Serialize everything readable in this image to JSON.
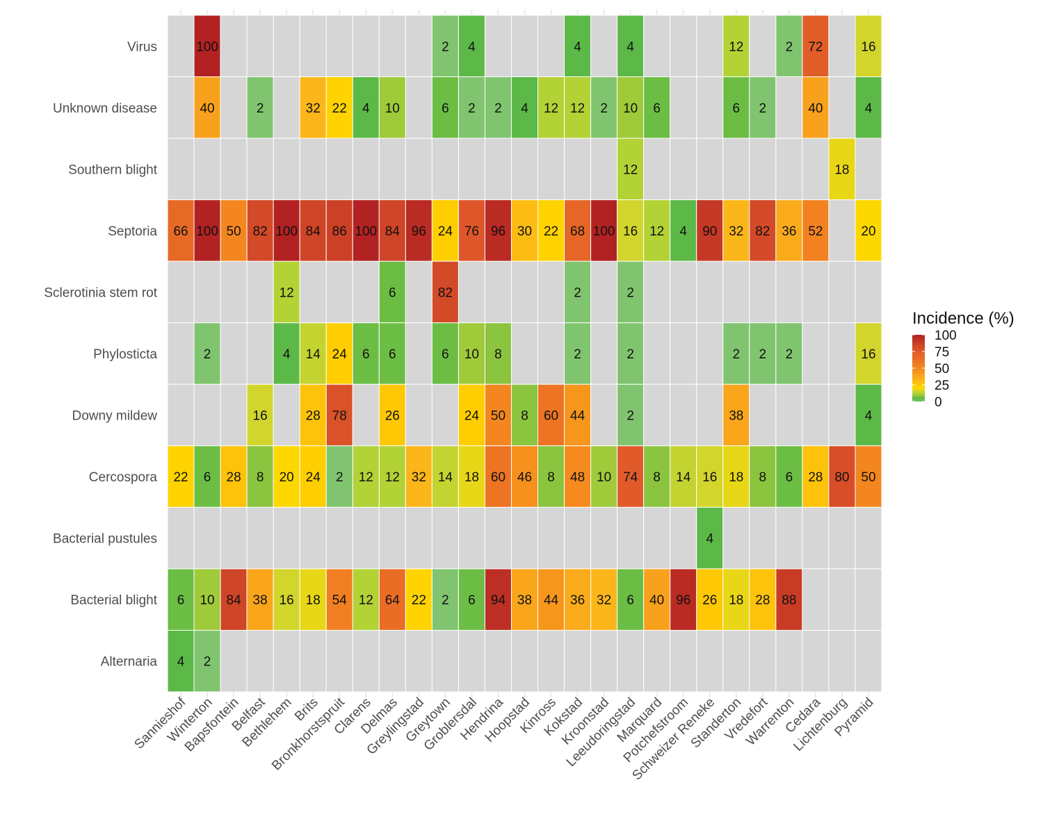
{
  "chart_data": {
    "type": "heatmap",
    "title": "",
    "xlabel": "",
    "ylabel": "",
    "legend": {
      "title": "Incidence (%)",
      "ticks": [
        0,
        25,
        50,
        75,
        100
      ],
      "range": [
        0,
        100
      ],
      "placement": "right"
    },
    "colors": {
      "na": "#d6d6d6",
      "low": "#4daf4a",
      "mid": "#ffd700",
      "high": "#b22222"
    },
    "x": [
      "Sannieshof",
      "Winterton",
      "Bapsfontein",
      "Belfast",
      "Bethlehem",
      "Brits",
      "Bronkhorstspruit",
      "Clarens",
      "Delmas",
      "Greylingstad",
      "Greytown",
      "Groblersdal",
      "Hendrina",
      "Hoopstad",
      "Kinross",
      "Kokstad",
      "Kroonstad",
      "Leeudoringstad",
      "Marquard",
      "Potchefstroom",
      "Schweizer Reneke",
      "Standerton",
      "Vredefort",
      "Warrenton",
      "Cedara",
      "Lichtenburg",
      "Pyramid"
    ],
    "y": [
      "Virus",
      "Unknown disease",
      "Southern blight",
      "Septoria",
      "Sclerotinia stem rot",
      "Phylosticta",
      "Downy mildew",
      "Cercospora",
      "Bacterial pustules",
      "Bacterial blight",
      "Alternaria"
    ],
    "values": [
      [
        null,
        100,
        null,
        null,
        null,
        null,
        null,
        null,
        null,
        null,
        2,
        4,
        null,
        null,
        null,
        4,
        null,
        4,
        null,
        null,
        null,
        12,
        null,
        2,
        72,
        null,
        16
      ],
      [
        null,
        40,
        null,
        2,
        null,
        32,
        22,
        4,
        10,
        null,
        6,
        2,
        2,
        4,
        12,
        12,
        2,
        10,
        6,
        null,
        null,
        6,
        2,
        null,
        40,
        null,
        4
      ],
      [
        null,
        null,
        null,
        null,
        null,
        null,
        null,
        null,
        null,
        null,
        null,
        null,
        null,
        null,
        null,
        null,
        null,
        12,
        null,
        null,
        null,
        null,
        null,
        null,
        null,
        18,
        null
      ],
      [
        66,
        100,
        50,
        82,
        100,
        84,
        86,
        100,
        84,
        96,
        24,
        76,
        96,
        30,
        22,
        68,
        100,
        16,
        12,
        4,
        90,
        32,
        82,
        36,
        52,
        null,
        20
      ],
      [
        null,
        null,
        null,
        null,
        12,
        null,
        null,
        null,
        6,
        null,
        82,
        null,
        null,
        null,
        null,
        2,
        null,
        2,
        null,
        null,
        null,
        null,
        null,
        null,
        null,
        null,
        null
      ],
      [
        null,
        2,
        null,
        null,
        4,
        14,
        24,
        6,
        6,
        null,
        6,
        10,
        8,
        null,
        null,
        2,
        null,
        2,
        null,
        null,
        null,
        2,
        2,
        2,
        null,
        null,
        16
      ],
      [
        null,
        null,
        null,
        16,
        null,
        28,
        78,
        null,
        26,
        null,
        null,
        24,
        50,
        8,
        60,
        44,
        null,
        2,
        null,
        null,
        null,
        38,
        null,
        null,
        null,
        null,
        4
      ],
      [
        22,
        6,
        28,
        8,
        20,
        24,
        2,
        12,
        12,
        32,
        14,
        18,
        60,
        46,
        8,
        48,
        10,
        74,
        8,
        14,
        16,
        18,
        8,
        6,
        28,
        80,
        50
      ],
      [
        null,
        null,
        null,
        null,
        null,
        null,
        null,
        null,
        null,
        null,
        null,
        null,
        null,
        null,
        null,
        null,
        null,
        null,
        null,
        null,
        4,
        null,
        null,
        null,
        null,
        null,
        null
      ],
      [
        6,
        10,
        84,
        38,
        16,
        18,
        54,
        12,
        64,
        22,
        2,
        6,
        94,
        38,
        44,
        36,
        32,
        6,
        40,
        96,
        26,
        18,
        28,
        88,
        null,
        null,
        null
      ],
      [
        4,
        2,
        null,
        null,
        null,
        null,
        null,
        null,
        null,
        null,
        null,
        null,
        null,
        null,
        null,
        null,
        null,
        null,
        null,
        null,
        null,
        null,
        null,
        null,
        null,
        null,
        null
      ]
    ]
  }
}
